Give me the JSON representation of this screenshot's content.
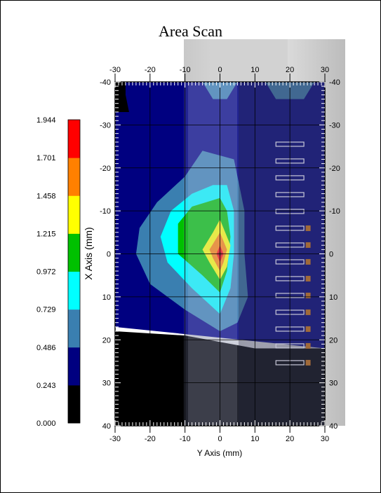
{
  "chart_data": {
    "type": "heatmap",
    "title": "Area Scan",
    "xlabel": "Y Axis (mm)",
    "ylabel": "X Axis (mm)",
    "x_range": [
      -30,
      30
    ],
    "y_range": [
      -40,
      40
    ],
    "x_ticks": [
      -30,
      -20,
      -10,
      0,
      10,
      20,
      30
    ],
    "y_ticks": [
      -40,
      -30,
      -20,
      -10,
      0,
      10,
      20,
      30,
      40
    ],
    "y_tick_labels": [
      "-40",
      "-30",
      "-20",
      "-10",
      "0",
      "10",
      "20",
      "30",
      "40"
    ],
    "x_tick_labels": [
      "-30",
      "-20",
      "-10",
      "0",
      "10",
      "20",
      "30"
    ],
    "grid": true,
    "colorbar": {
      "levels": [
        0.0,
        0.243,
        0.486,
        0.729,
        0.972,
        1.215,
        1.458,
        1.701,
        1.944
      ],
      "labels": [
        "0.000",
        "0.243",
        "0.486",
        "0.729",
        "0.972",
        "1.215",
        "1.458",
        "1.701",
        "1.944"
      ],
      "colors": [
        "#000000",
        "#000080",
        "#3a7fb0",
        "#00ffff",
        "#00c000",
        "#ffff00",
        "#ff8000",
        "#ff0000"
      ]
    },
    "peak": {
      "x": 0,
      "y": 0,
      "value": 1.9
    },
    "contours": [
      {
        "level": 0.243,
        "color": "#000080",
        "points": [
          [
            -30,
            -40
          ],
          [
            30,
            -40
          ],
          [
            30,
            22
          ],
          [
            -30,
            17
          ]
        ]
      },
      {
        "level": 0.486,
        "color": "#3a7fb0",
        "points": [
          [
            -5,
            -24
          ],
          [
            4,
            -22
          ],
          [
            7,
            -10
          ],
          [
            7,
            0
          ],
          [
            8,
            10
          ],
          [
            5,
            16
          ],
          [
            0,
            18
          ],
          [
            -10,
            13
          ],
          [
            -20,
            7
          ],
          [
            -24,
            0
          ],
          [
            -23,
            -6
          ],
          [
            -18,
            -12
          ],
          [
            -10,
            -18
          ]
        ]
      },
      {
        "level": 0.729,
        "color": "#00ffff",
        "points": [
          [
            -2,
            -16
          ],
          [
            2,
            -16
          ],
          [
            4,
            -10
          ],
          [
            4,
            0
          ],
          [
            3,
            8
          ],
          [
            0,
            14
          ],
          [
            -8,
            8
          ],
          [
            -15,
            2
          ],
          [
            -17,
            -4
          ],
          [
            -14,
            -10
          ],
          [
            -8,
            -14
          ]
        ]
      },
      {
        "level": 0.972,
        "color": "#00c000",
        "points": [
          [
            0,
            -13
          ],
          [
            2,
            -10
          ],
          [
            3,
            -4
          ],
          [
            2,
            4
          ],
          [
            0,
            9
          ],
          [
            -5,
            5
          ],
          [
            -12,
            0
          ],
          [
            -12,
            -7
          ],
          [
            -8,
            -11
          ]
        ]
      },
      {
        "level": 1.215,
        "color": "#ffff00",
        "points": [
          [
            0,
            -8
          ],
          [
            3,
            -2
          ],
          [
            2,
            3
          ],
          [
            0,
            6
          ],
          [
            -3,
            2
          ],
          [
            -5,
            -1
          ],
          [
            -2,
            -5
          ]
        ]
      },
      {
        "level": 1.458,
        "color": "#ff8000",
        "points": [
          [
            0,
            -5
          ],
          [
            2,
            -1
          ],
          [
            1,
            2
          ],
          [
            0,
            4
          ],
          [
            -2,
            1
          ],
          [
            -3,
            -1
          ]
        ]
      },
      {
        "level": 1.701,
        "color": "#ff0000",
        "points": [
          [
            0,
            -2
          ],
          [
            1,
            0
          ],
          [
            0,
            2
          ],
          [
            -1,
            0
          ]
        ]
      }
    ],
    "secondary_patches": [
      {
        "level": 0.486,
        "color": "#3a7fb0",
        "points": [
          [
            -5,
            -40
          ],
          [
            -2,
            -36
          ],
          [
            2,
            -36
          ],
          [
            5,
            -40
          ]
        ]
      },
      {
        "level": 0.486,
        "color": "#3a7fb0",
        "points": [
          [
            13,
            -40
          ],
          [
            16,
            -36
          ],
          [
            24,
            -36
          ],
          [
            27,
            -40
          ]
        ]
      },
      {
        "level": 0.243,
        "color": "#000080",
        "points": [
          [
            -7,
            32
          ],
          [
            0,
            28
          ],
          [
            6,
            31
          ],
          [
            0,
            35
          ]
        ]
      }
    ],
    "black_regions": [
      {
        "level": 0.0,
        "color": "#000000",
        "points": [
          [
            -30,
            -40
          ],
          [
            -27,
            -40
          ],
          [
            -27,
            -37
          ],
          [
            -26,
            -33
          ],
          [
            -30,
            -33
          ]
        ]
      },
      {
        "level": 0.0,
        "color": "#000000",
        "points": [
          [
            -30,
            18
          ],
          [
            -10,
            19
          ],
          [
            10,
            22
          ],
          [
            30,
            22
          ],
          [
            30,
            40
          ],
          [
            -30,
            40
          ]
        ]
      }
    ]
  }
}
